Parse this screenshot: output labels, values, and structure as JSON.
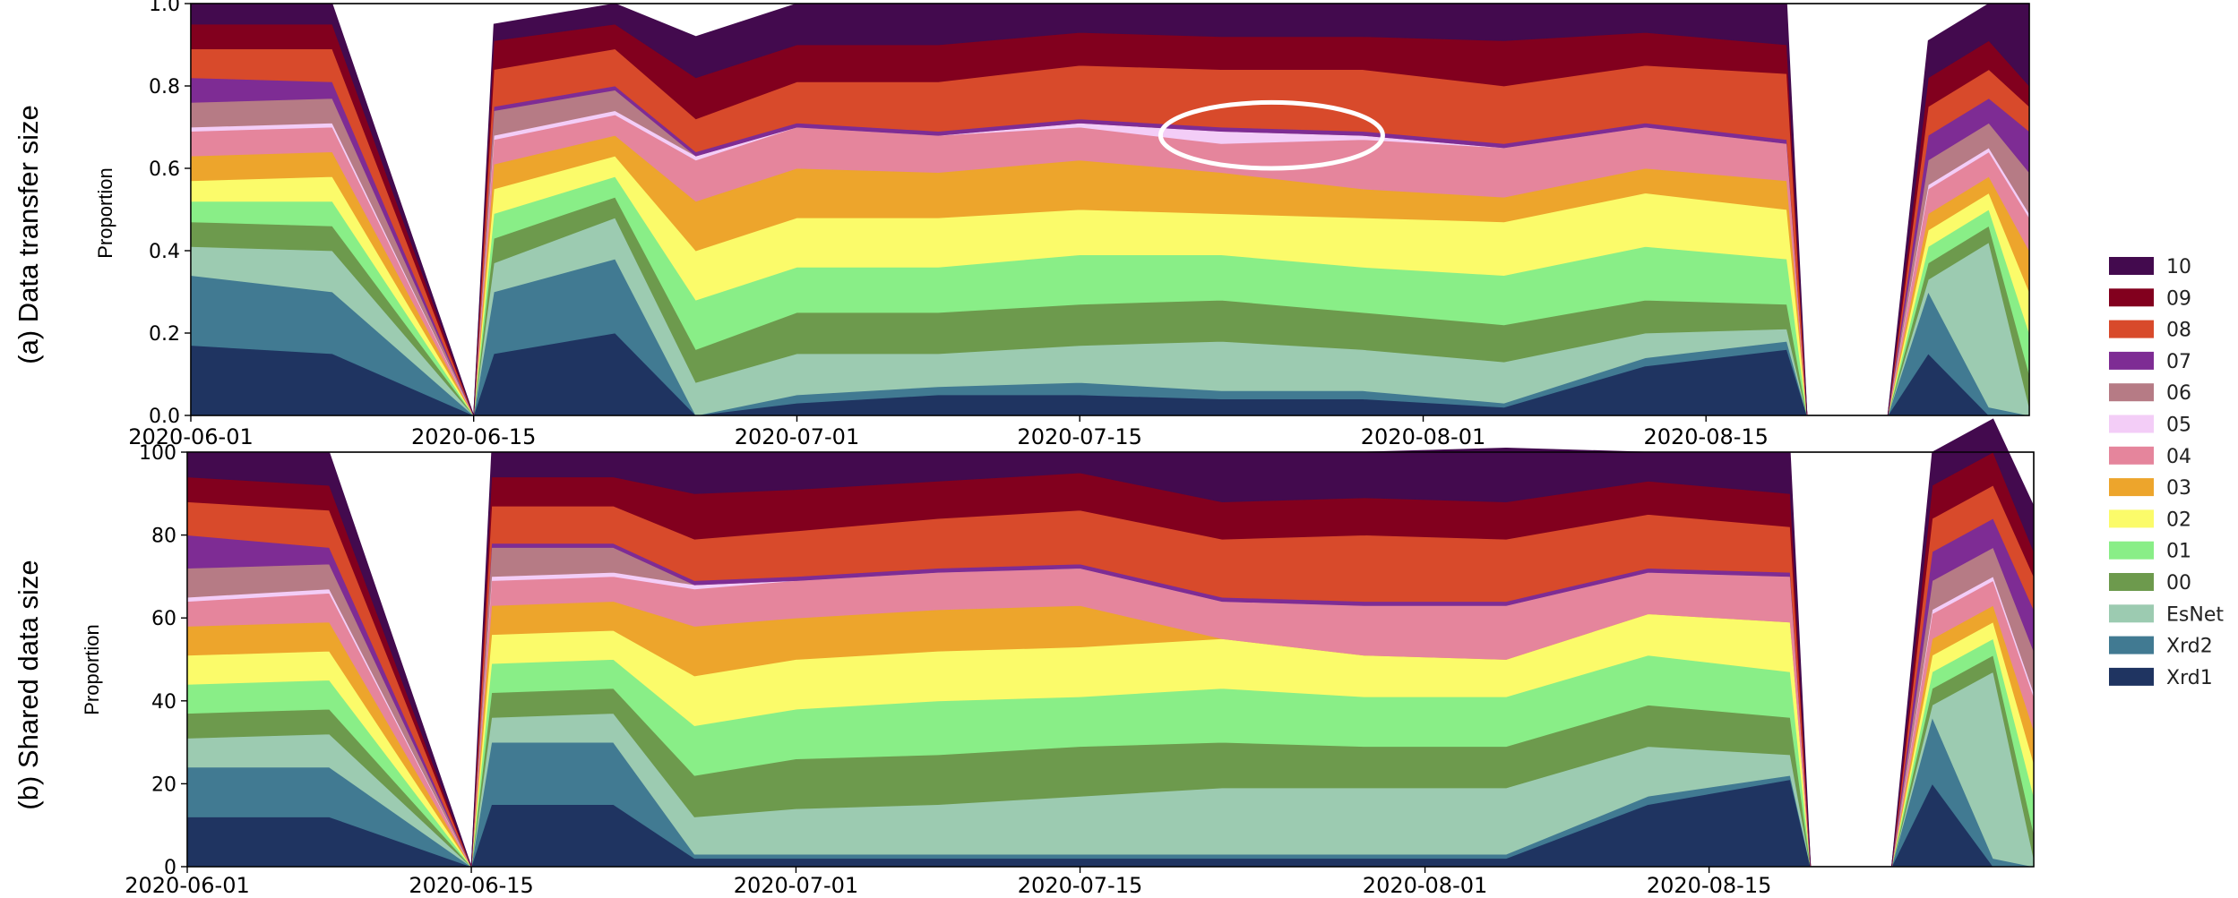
{
  "chart_data": [
    {
      "type": "area",
      "stacked": true,
      "panel_label": "(a) Data transfer size",
      "ylabel": "Proportion",
      "ylim": [
        0.0,
        1.0
      ],
      "yticks": [
        "0.0",
        "0.2",
        "0.4",
        "0.6",
        "0.8",
        "1.0"
      ],
      "xticks": [
        "2020-06-01",
        "2020-06-15",
        "2020-07-01",
        "2020-07-15",
        "2020-08-01",
        "2020-08-15"
      ],
      "xlim": [
        "2020-06-01",
        "2020-08-31"
      ],
      "x": [
        "2020-06-01",
        "2020-06-08",
        "2020-06-15",
        "2020-06-16",
        "2020-06-22",
        "2020-06-26",
        "2020-07-01",
        "2020-07-08",
        "2020-07-15",
        "2020-07-22",
        "2020-07-29",
        "2020-08-05",
        "2020-08-12",
        "2020-08-19",
        "2020-08-20",
        "2020-08-24",
        "2020-08-26",
        "2020-08-29",
        "2020-08-31"
      ],
      "series": [
        {
          "name": "Xrd1",
          "values": [
            0.17,
            0.15,
            0.0,
            0.15,
            0.2,
            0.0,
            0.03,
            0.05,
            0.05,
            0.04,
            0.04,
            0.02,
            0.12,
            0.16,
            0.0,
            0.0,
            0.15,
            0.0,
            0.0
          ]
        },
        {
          "name": "Xrd2",
          "values": [
            0.17,
            0.15,
            0.0,
            0.15,
            0.18,
            0.0,
            0.02,
            0.02,
            0.03,
            0.02,
            0.02,
            0.01,
            0.02,
            0.02,
            0.0,
            0.0,
            0.15,
            0.02,
            0.0
          ]
        },
        {
          "name": "EsNet",
          "values": [
            0.07,
            0.1,
            0.0,
            0.07,
            0.1,
            0.08,
            0.1,
            0.08,
            0.09,
            0.12,
            0.1,
            0.1,
            0.06,
            0.03,
            0.0,
            0.0,
            0.03,
            0.4,
            0.02
          ]
        },
        {
          "name": "00",
          "values": [
            0.06,
            0.06,
            0.0,
            0.06,
            0.05,
            0.08,
            0.1,
            0.1,
            0.1,
            0.1,
            0.09,
            0.09,
            0.08,
            0.06,
            0.0,
            0.0,
            0.04,
            0.04,
            0.08
          ]
        },
        {
          "name": "01",
          "values": [
            0.05,
            0.06,
            0.0,
            0.06,
            0.05,
            0.12,
            0.11,
            0.11,
            0.12,
            0.11,
            0.11,
            0.12,
            0.13,
            0.11,
            0.0,
            0.0,
            0.04,
            0.04,
            0.1
          ]
        },
        {
          "name": "02",
          "values": [
            0.05,
            0.06,
            0.0,
            0.06,
            0.05,
            0.12,
            0.12,
            0.12,
            0.11,
            0.1,
            0.12,
            0.13,
            0.13,
            0.12,
            0.0,
            0.0,
            0.04,
            0.04,
            0.1
          ]
        },
        {
          "name": "03",
          "values": [
            0.06,
            0.06,
            0.0,
            0.06,
            0.05,
            0.12,
            0.12,
            0.11,
            0.12,
            0.1,
            0.07,
            0.06,
            0.06,
            0.07,
            0.0,
            0.0,
            0.04,
            0.04,
            0.1
          ]
        },
        {
          "name": "04",
          "values": [
            0.06,
            0.06,
            0.0,
            0.06,
            0.05,
            0.1,
            0.1,
            0.09,
            0.08,
            0.07,
            0.12,
            0.12,
            0.1,
            0.09,
            0.0,
            0.0,
            0.06,
            0.06,
            0.08
          ]
        },
        {
          "name": "05",
          "values": [
            0.01,
            0.01,
            0.0,
            0.01,
            0.01,
            0.01,
            0.0,
            0.0,
            0.01,
            0.03,
            0.01,
            0.0,
            0.0,
            0.0,
            0.0,
            0.0,
            0.01,
            0.01,
            0.01
          ]
        },
        {
          "name": "06",
          "values": [
            0.06,
            0.06,
            0.0,
            0.06,
            0.05,
            0.0,
            0.0,
            0.0,
            0.0,
            0.0,
            0.0,
            0.0,
            0.0,
            0.0,
            0.0,
            0.0,
            0.06,
            0.06,
            0.1
          ]
        },
        {
          "name": "07",
          "values": [
            0.06,
            0.04,
            0.0,
            0.01,
            0.01,
            0.01,
            0.01,
            0.01,
            0.01,
            0.01,
            0.01,
            0.01,
            0.01,
            0.01,
            0.0,
            0.0,
            0.06,
            0.06,
            0.1
          ]
        },
        {
          "name": "08",
          "values": [
            0.07,
            0.08,
            0.0,
            0.09,
            0.09,
            0.08,
            0.1,
            0.12,
            0.13,
            0.14,
            0.15,
            0.14,
            0.14,
            0.16,
            0.0,
            0.0,
            0.07,
            0.07,
            0.06
          ]
        },
        {
          "name": "09",
          "values": [
            0.06,
            0.06,
            0.0,
            0.07,
            0.06,
            0.1,
            0.09,
            0.09,
            0.08,
            0.08,
            0.08,
            0.11,
            0.08,
            0.07,
            0.0,
            0.0,
            0.07,
            0.07,
            0.05
          ]
        },
        {
          "name": "10",
          "values": [
            0.05,
            0.05,
            0.0,
            0.04,
            0.05,
            0.1,
            0.1,
            0.1,
            0.07,
            0.08,
            0.08,
            0.09,
            0.07,
            0.1,
            0.0,
            0.0,
            0.09,
            0.09,
            0.2
          ]
        }
      ],
      "annotation": {
        "type": "ellipse",
        "x_range": [
          "2020-07-19",
          "2020-07-30"
        ],
        "y_range": [
          0.6,
          0.76
        ]
      }
    },
    {
      "type": "area",
      "stacked": true,
      "panel_label": "(b) Shared data size",
      "ylabel": "Proportion",
      "ylim": [
        0,
        100
      ],
      "yticks": [
        "0",
        "20",
        "40",
        "60",
        "80",
        "100"
      ],
      "xticks": [
        "2020-06-01",
        "2020-06-15",
        "2020-07-01",
        "2020-07-15",
        "2020-08-01",
        "2020-08-15"
      ],
      "xlim": [
        "2020-06-01",
        "2020-08-31"
      ],
      "x": [
        "2020-06-01",
        "2020-06-08",
        "2020-06-15",
        "2020-06-16",
        "2020-06-22",
        "2020-06-26",
        "2020-07-01",
        "2020-07-08",
        "2020-07-15",
        "2020-07-22",
        "2020-07-29",
        "2020-08-05",
        "2020-08-12",
        "2020-08-19",
        "2020-08-20",
        "2020-08-24",
        "2020-08-26",
        "2020-08-29",
        "2020-08-31"
      ],
      "series": [
        {
          "name": "Xrd1",
          "values": [
            12,
            12,
            0,
            15,
            15,
            2,
            2,
            2,
            2,
            2,
            2,
            2,
            15,
            21,
            0,
            0,
            20,
            0,
            0
          ]
        },
        {
          "name": "Xrd2",
          "values": [
            12,
            12,
            0,
            15,
            15,
            1,
            1,
            1,
            1,
            1,
            1,
            1,
            2,
            1,
            0,
            0,
            16,
            2,
            0
          ]
        },
        {
          "name": "EsNet",
          "values": [
            7,
            8,
            0,
            6,
            7,
            9,
            11,
            12,
            14,
            16,
            16,
            16,
            12,
            5,
            0,
            0,
            3,
            45,
            2
          ]
        },
        {
          "name": "00",
          "values": [
            6,
            6,
            0,
            6,
            6,
            10,
            12,
            12,
            12,
            11,
            10,
            10,
            10,
            9,
            0,
            0,
            4,
            4,
            6
          ]
        },
        {
          "name": "01",
          "values": [
            7,
            7,
            0,
            7,
            7,
            12,
            12,
            13,
            12,
            13,
            12,
            12,
            12,
            11,
            0,
            0,
            4,
            4,
            9
          ]
        },
        {
          "name": "02",
          "values": [
            7,
            7,
            0,
            7,
            7,
            12,
            12,
            12,
            12,
            12,
            10,
            9,
            10,
            12,
            0,
            0,
            4,
            4,
            8
          ]
        },
        {
          "name": "03",
          "values": [
            7,
            7,
            0,
            7,
            7,
            12,
            10,
            10,
            10,
            0,
            0,
            0,
            0,
            0,
            0,
            0,
            4,
            4,
            8
          ]
        },
        {
          "name": "04",
          "values": [
            6,
            7,
            0,
            6,
            6,
            9,
            9,
            9,
            9,
            9,
            12,
            13,
            10,
            11,
            0,
            0,
            6,
            6,
            8
          ]
        },
        {
          "name": "05",
          "values": [
            1,
            1,
            0,
            1,
            1,
            1,
            0,
            0,
            0,
            0,
            0,
            0,
            0,
            0,
            0,
            0,
            1,
            1,
            1
          ]
        },
        {
          "name": "06",
          "values": [
            7,
            6,
            0,
            7,
            6,
            0,
            0,
            0,
            0,
            0,
            0,
            0,
            0,
            0,
            0,
            0,
            7,
            7,
            10
          ]
        },
        {
          "name": "07",
          "values": [
            8,
            4,
            0,
            1,
            1,
            1,
            1,
            1,
            1,
            1,
            1,
            1,
            1,
            1,
            0,
            0,
            7,
            7,
            10
          ]
        },
        {
          "name": "08",
          "values": [
            8,
            9,
            0,
            9,
            9,
            10,
            11,
            12,
            13,
            14,
            16,
            15,
            13,
            11,
            0,
            0,
            8,
            8,
            8
          ]
        },
        {
          "name": "09",
          "values": [
            6,
            6,
            0,
            7,
            7,
            11,
            10,
            9,
            9,
            9,
            9,
            9,
            8,
            8,
            0,
            0,
            8,
            8,
            6
          ]
        },
        {
          "name": "10",
          "values": [
            6,
            8,
            0,
            6,
            6,
            10,
            9,
            7,
            5,
            12,
            11,
            13,
            7,
            10,
            0,
            0,
            8,
            8,
            11
          ]
        }
      ]
    }
  ],
  "legend": {
    "placement": "right",
    "items": [
      {
        "label": "10",
        "color": "#430a4e"
      },
      {
        "label": "09",
        "color": "#82001e"
      },
      {
        "label": "08",
        "color": "#d84a2b"
      },
      {
        "label": "07",
        "color": "#7e2c94"
      },
      {
        "label": "06",
        "color": "#b67b85"
      },
      {
        "label": "05",
        "color": "#f3cdf7"
      },
      {
        "label": "04",
        "color": "#e5859c"
      },
      {
        "label": "03",
        "color": "#eda52c"
      },
      {
        "label": "02",
        "color": "#fbfb6a"
      },
      {
        "label": "01",
        "color": "#89ee87"
      },
      {
        "label": "00",
        "color": "#6d9a4d"
      },
      {
        "label": "EsNet",
        "color": "#9ccbb1"
      },
      {
        "label": "Xrd2",
        "color": "#417a92"
      },
      {
        "label": "Xrd1",
        "color": "#1f3461"
      }
    ]
  }
}
